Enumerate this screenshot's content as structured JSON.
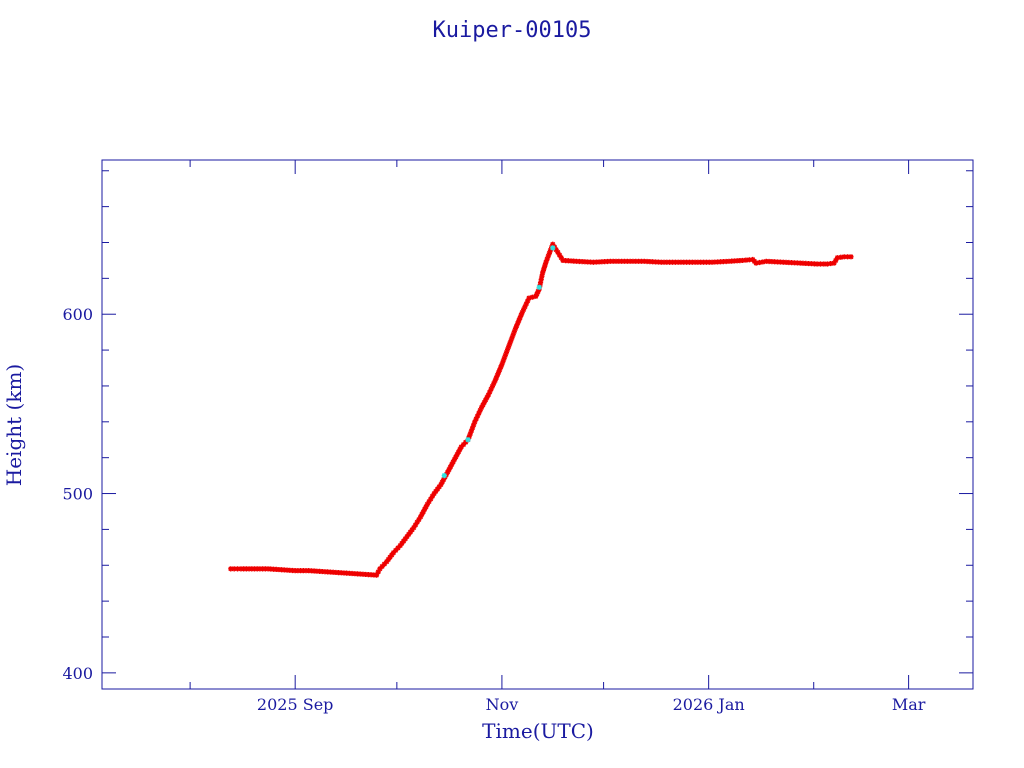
{
  "chart_data": {
    "type": "scatter",
    "title": "Kuiper-00105",
    "xlabel": "Time(UTC)",
    "ylabel": "Height (km)",
    "xlim": [
      "2025-07-06",
      "2026-03-20"
    ],
    "ylim": [
      391,
      686
    ],
    "x_ticks": [
      {
        "date": "2025-09-01",
        "label": "2025 Sep"
      },
      {
        "date": "2025-11-01",
        "label": "Nov"
      },
      {
        "date": "2026-01-01",
        "label": "2026 Jan"
      },
      {
        "date": "2026-03-01",
        "label": "Mar"
      }
    ],
    "x_minor_ticks": [
      "2025-08-01",
      "2025-10-01",
      "2025-12-01",
      "2026-02-01"
    ],
    "y_ticks": [
      400,
      500,
      600
    ],
    "y_minor_step": 20,
    "grid": false,
    "colors": {
      "axis": "#1a1aa0",
      "primary": "#ee0000",
      "secondary": "#30e0e0"
    },
    "series": [
      {
        "marker": "star",
        "color": "#ee0000",
        "points": [
          [
            "2025-08-13",
            458
          ],
          [
            "2025-08-16",
            458
          ],
          [
            "2025-08-20",
            458
          ],
          [
            "2025-08-24",
            458
          ],
          [
            "2025-08-28",
            457.5
          ],
          [
            "2025-09-01",
            457
          ],
          [
            "2025-09-05",
            457
          ],
          [
            "2025-09-09",
            456.5
          ],
          [
            "2025-09-13",
            456
          ],
          [
            "2025-09-17",
            455.5
          ],
          [
            "2025-09-21",
            455
          ],
          [
            "2025-09-25",
            454.5
          ],
          [
            "2025-09-26",
            458
          ],
          [
            "2025-09-28",
            462
          ],
          [
            "2025-09-30",
            467
          ],
          [
            "2025-10-02",
            471
          ],
          [
            "2025-10-04",
            476
          ],
          [
            "2025-10-06",
            481
          ],
          [
            "2025-10-08",
            487
          ],
          [
            "2025-10-10",
            494
          ],
          [
            "2025-10-12",
            500
          ],
          [
            "2025-10-14",
            505
          ],
          [
            "2025-10-16",
            512
          ],
          [
            "2025-10-18",
            519
          ],
          [
            "2025-10-20",
            526
          ],
          [
            "2025-10-22",
            530
          ],
          [
            "2025-10-24",
            540
          ],
          [
            "2025-10-26",
            548
          ],
          [
            "2025-10-28",
            555
          ],
          [
            "2025-10-30",
            563
          ],
          [
            "2025-11-01",
            572
          ],
          [
            "2025-11-03",
            582
          ],
          [
            "2025-11-05",
            592
          ],
          [
            "2025-11-07",
            601
          ],
          [
            "2025-11-09",
            609
          ],
          [
            "2025-11-11",
            610
          ],
          [
            "2025-11-12",
            614
          ],
          [
            "2025-11-13",
            623
          ],
          [
            "2025-11-14",
            629
          ],
          [
            "2025-11-16",
            639
          ],
          [
            "2025-11-17",
            636
          ],
          [
            "2025-11-18",
            633
          ],
          [
            "2025-11-19",
            630
          ],
          [
            "2025-11-23",
            629.5
          ],
          [
            "2025-11-28",
            629
          ],
          [
            "2025-12-03",
            629.5
          ],
          [
            "2025-12-08",
            629.5
          ],
          [
            "2025-12-13",
            629.5
          ],
          [
            "2025-12-18",
            629
          ],
          [
            "2025-12-23",
            629
          ],
          [
            "2025-12-28",
            629
          ],
          [
            "2026-01-02",
            629
          ],
          [
            "2026-01-07",
            629.5
          ],
          [
            "2026-01-11",
            630
          ],
          [
            "2026-01-14",
            630.5
          ],
          [
            "2026-01-15",
            628.5
          ],
          [
            "2026-01-18",
            629.5
          ],
          [
            "2026-01-23",
            629
          ],
          [
            "2026-01-28",
            628.5
          ],
          [
            "2026-02-02",
            628
          ],
          [
            "2026-02-05",
            628
          ],
          [
            "2026-02-07",
            628.5
          ],
          [
            "2026-02-08",
            631.5
          ],
          [
            "2026-02-10",
            632
          ],
          [
            "2026-02-12",
            632
          ]
        ]
      },
      {
        "marker": "star",
        "color": "#30e0e0",
        "points": [
          [
            "2025-10-15",
            510
          ],
          [
            "2025-10-22",
            530
          ],
          [
            "2025-11-12",
            615
          ],
          [
            "2025-11-16",
            637
          ]
        ]
      }
    ]
  }
}
